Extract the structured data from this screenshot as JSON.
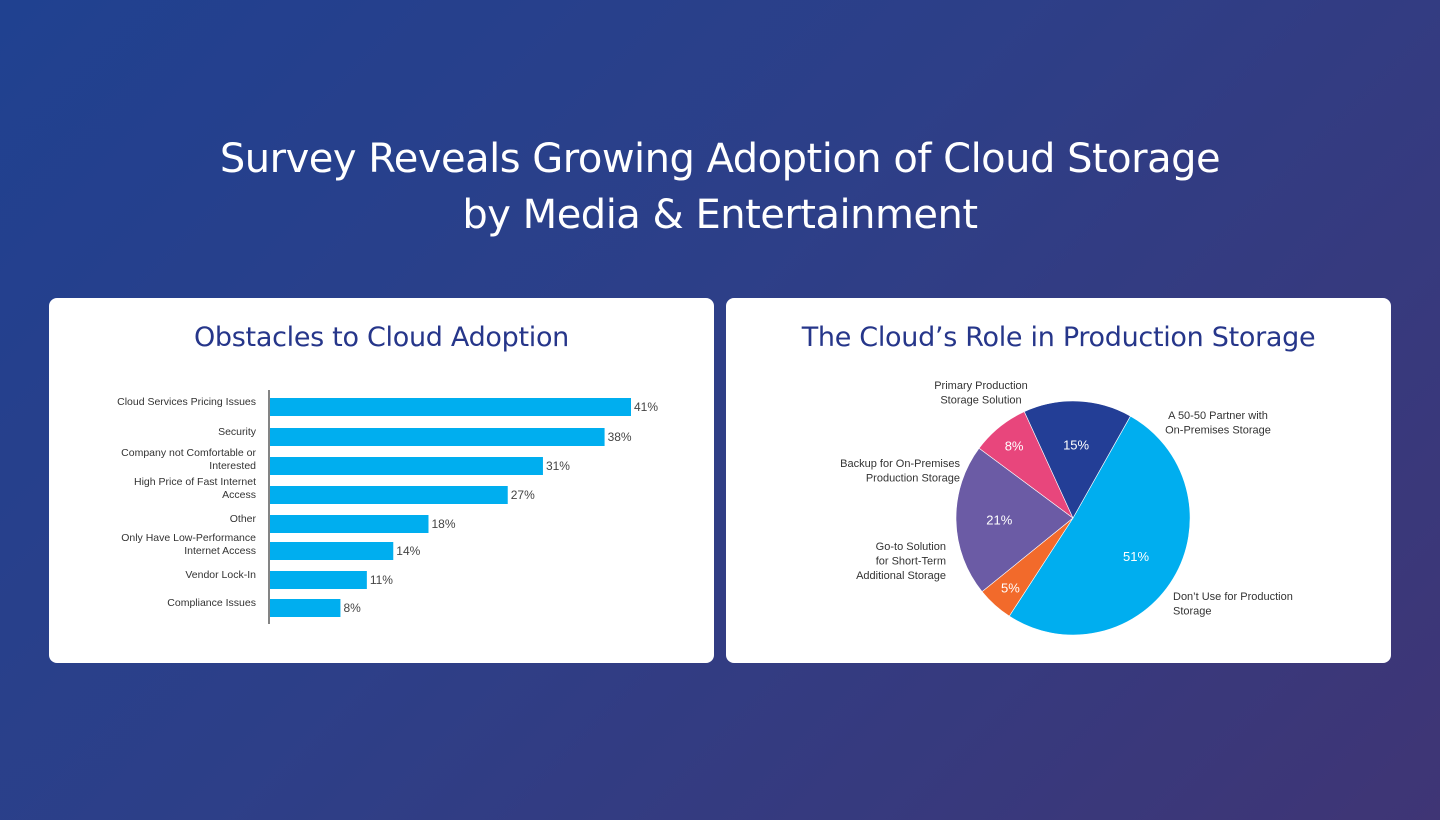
{
  "header": {
    "title_line1": "Survey Reveals Growing Adoption of Cloud Storage",
    "title_line2": "by Media & Entertainment"
  },
  "colors": {
    "bar": "#00aeef",
    "pie": [
      "#00aeef",
      "#f26a2b",
      "#6b5ba5",
      "#e8467c",
      "#233e96"
    ],
    "title_text": "#26368a"
  },
  "chart_data": [
    {
      "type": "bar",
      "orientation": "horizontal",
      "title": "Obstacles to Cloud Adoption",
      "categories": [
        [
          "Cloud Services Pricing Issues"
        ],
        [
          "Security"
        ],
        [
          "Company not Comfortable or",
          "Interested"
        ],
        [
          "High Price of Fast Internet",
          "Access"
        ],
        [
          "Other"
        ],
        [
          "Only Have Low-Performance",
          "Internet Access"
        ],
        [
          "Vendor Lock-In"
        ],
        [
          "Compliance Issues"
        ]
      ],
      "values": [
        41,
        38,
        31,
        27,
        18,
        14,
        11,
        8
      ],
      "value_labels": [
        "41%",
        "38%",
        "31%",
        "27%",
        "18%",
        "14%",
        "11%",
        "8%"
      ],
      "xlim": [
        0,
        41
      ],
      "grid": false
    },
    {
      "type": "pie",
      "title": "The Cloud’s Role in Production Storage",
      "slices": [
        {
          "label": [
            "Don’t Use for Production",
            "Storage"
          ],
          "value": 51,
          "value_label": "51%",
          "color": "#00aeef"
        },
        {
          "label": [
            "Go-to Solution",
            "for Short-Term",
            "Additional Storage"
          ],
          "value": 5,
          "value_label": "5%",
          "color": "#f26a2b"
        },
        {
          "label": [
            "Backup for On-Premises",
            "Production Storage"
          ],
          "value": 21,
          "value_label": "21%",
          "color": "#6b5ba5"
        },
        {
          "label": [
            "Primary Production",
            "Storage Solution"
          ],
          "value": 8,
          "value_label": "8%",
          "color": "#e8467c"
        },
        {
          "label": [
            "A 50-50 Partner with",
            "On-Premises Storage"
          ],
          "value": 15,
          "value_label": "15%",
          "color": "#233e96"
        }
      ]
    }
  ]
}
